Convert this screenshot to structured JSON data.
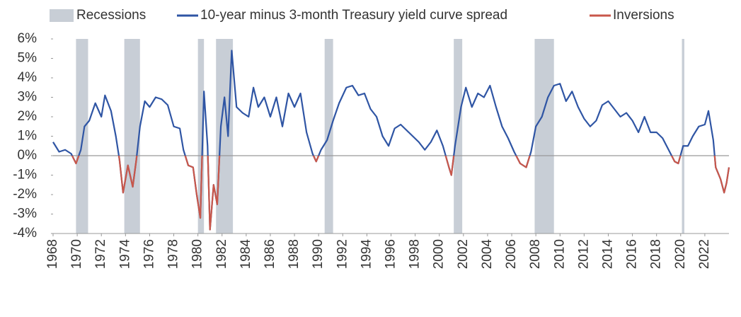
{
  "chart_data": {
    "type": "line",
    "x": [
      1968.0,
      1968.5,
      1969.0,
      1969.5,
      1969.9,
      1970.3,
      1970.6,
      1971.0,
      1971.5,
      1972.0,
      1972.3,
      1972.8,
      1973.2,
      1973.5,
      1973.8,
      1974.2,
      1974.6,
      1974.9,
      1975.2,
      1975.6,
      1976.0,
      1976.5,
      1977.0,
      1977.5,
      1978.0,
      1978.5,
      1978.8,
      1979.2,
      1979.6,
      1979.9,
      1980.2,
      1980.5,
      1980.8,
      1981.0,
      1981.3,
      1981.6,
      1981.9,
      1982.2,
      1982.5,
      1982.8,
      1983.2,
      1983.7,
      1984.2,
      1984.6,
      1985.0,
      1985.5,
      1986.0,
      1986.5,
      1987.0,
      1987.5,
      1988.0,
      1988.5,
      1989.0,
      1989.5,
      1989.8,
      1990.2,
      1990.7,
      1991.2,
      1991.7,
      1992.3,
      1992.8,
      1993.3,
      1993.8,
      1994.3,
      1994.8,
      1995.3,
      1995.8,
      1996.3,
      1996.8,
      1997.3,
      1997.8,
      1998.3,
      1998.8,
      1999.3,
      1999.8,
      2000.3,
      2000.8,
      2001.0,
      2001.3,
      2001.8,
      2002.2,
      2002.7,
      2003.2,
      2003.7,
      2004.2,
      2004.7,
      2005.2,
      2005.7,
      2006.2,
      2006.7,
      2007.2,
      2007.6,
      2008.0,
      2008.5,
      2009.0,
      2009.5,
      2010.0,
      2010.5,
      2011.0,
      2011.5,
      2012.0,
      2012.5,
      2013.0,
      2013.5,
      2014.0,
      2014.5,
      2015.0,
      2015.5,
      2016.0,
      2016.5,
      2017.0,
      2017.5,
      2018.0,
      2018.5,
      2019.0,
      2019.5,
      2019.8,
      2020.2,
      2020.6,
      2021.0,
      2021.5,
      2022.0,
      2022.3,
      2022.7,
      2022.9,
      2023.3,
      2023.6,
      2023.8,
      2024.0
    ],
    "series": [
      {
        "name": "10-year minus 3-month Treasury yield curve spread",
        "color": "#2f55a4",
        "values": [
          0.7,
          0.2,
          0.3,
          0.1,
          -0.4,
          0.3,
          1.5,
          1.8,
          2.7,
          2.0,
          3.1,
          2.3,
          1.0,
          -0.2,
          -1.9,
          -0.5,
          -1.6,
          -0.2,
          1.5,
          2.8,
          2.5,
          3.0,
          2.9,
          2.6,
          1.5,
          1.4,
          0.3,
          -0.5,
          -0.6,
          -2.0,
          -3.2,
          3.3,
          0.5,
          -3.8,
          -1.5,
          -2.5,
          1.5,
          3.0,
          1.0,
          5.4,
          2.5,
          2.2,
          2.0,
          3.5,
          2.5,
          3.0,
          2.0,
          3.0,
          1.5,
          3.2,
          2.5,
          3.2,
          1.2,
          0.1,
          -0.3,
          0.3,
          0.8,
          1.8,
          2.7,
          3.5,
          3.6,
          3.1,
          3.2,
          2.4,
          2.0,
          1.0,
          0.5,
          1.4,
          1.6,
          1.3,
          1.0,
          0.7,
          0.3,
          0.7,
          1.3,
          0.5,
          -0.6,
          -1.0,
          0.5,
          2.5,
          3.5,
          2.5,
          3.2,
          3.0,
          3.6,
          2.5,
          1.5,
          0.9,
          0.2,
          -0.4,
          -0.6,
          0.2,
          1.5,
          2.0,
          3.0,
          3.6,
          3.7,
          2.8,
          3.3,
          2.5,
          1.9,
          1.5,
          1.8,
          2.6,
          2.8,
          2.4,
          2.0,
          2.2,
          1.8,
          1.2,
          2.0,
          1.2,
          1.2,
          0.9,
          0.3,
          -0.3,
          -0.4,
          0.5,
          0.5,
          1.0,
          1.5,
          1.6,
          2.3,
          0.8,
          -0.6,
          -1.2,
          -1.9,
          -1.4,
          -0.6
        ]
      }
    ],
    "inversions": {
      "name": "Inversions",
      "color": "#c9574a"
    },
    "recessions": {
      "name": "Recessions",
      "color": "#c8ced6",
      "ranges": [
        [
          1969.9,
          1970.9
        ],
        [
          1973.9,
          1975.2
        ],
        [
          1980.0,
          1980.5
        ],
        [
          1981.5,
          1982.9
        ],
        [
          1990.5,
          1991.2
        ],
        [
          2001.2,
          2001.9
        ],
        [
          2007.9,
          2009.5
        ],
        [
          2020.1,
          2020.3
        ]
      ]
    },
    "xlim": [
      1968,
      2024
    ],
    "xticks": [
      1968,
      1970,
      1972,
      1974,
      1976,
      1978,
      1980,
      1982,
      1984,
      1986,
      1988,
      1990,
      1992,
      1994,
      1996,
      1998,
      2000,
      2002,
      2004,
      2006,
      2008,
      2010,
      2012,
      2014,
      2016,
      2018,
      2020,
      2022
    ],
    "ylim": [
      -4,
      6
    ],
    "yticks": [
      {
        "value": -4,
        "label": "-4%"
      },
      {
        "value": -3,
        "label": "-3%"
      },
      {
        "value": -2,
        "label": "-2%"
      },
      {
        "value": -1,
        "label": "-1%"
      },
      {
        "value": 0,
        "label": "0%"
      },
      {
        "value": 1,
        "label": "1%"
      },
      {
        "value": 2,
        "label": "2%"
      },
      {
        "value": 3,
        "label": "3%"
      },
      {
        "value": 4,
        "label": "4%"
      },
      {
        "value": 5,
        "label": "5%"
      },
      {
        "value": 6,
        "label": "6%"
      }
    ]
  }
}
